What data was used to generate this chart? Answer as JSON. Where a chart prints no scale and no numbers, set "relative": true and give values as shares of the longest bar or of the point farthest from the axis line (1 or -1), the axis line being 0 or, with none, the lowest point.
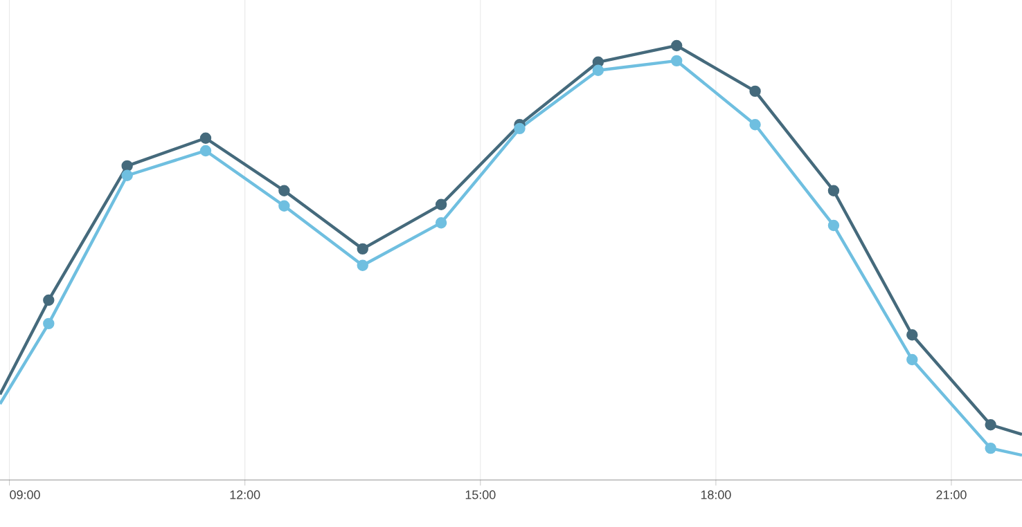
{
  "chart_data": {
    "type": "line",
    "relative": true,
    "x": [
      8.88,
      9.5,
      10.5,
      11.5,
      12.5,
      13.5,
      14.5,
      15.5,
      16.5,
      17.5,
      18.5,
      19.5,
      20.5,
      21.5,
      21.9
    ],
    "series": [
      {
        "color": "#456a7c",
        "values": [
          0.197,
          0.414,
          0.723,
          0.787,
          0.666,
          0.532,
          0.634,
          0.818,
          0.962,
          1,
          0.895,
          0.666,
          0.334,
          0.127,
          0.105
        ]
      },
      {
        "color": "#6fbfe0",
        "values": [
          0.175,
          0.36,
          0.701,
          0.758,
          0.631,
          0.494,
          0.592,
          0.809,
          0.943,
          0.965,
          0.818,
          0.586,
          0.277,
          0.073,
          0.057
        ]
      }
    ],
    "xlim": [
      8.88,
      21.9
    ],
    "xticks": [
      {
        "value": 9,
        "label": "09:00"
      },
      {
        "value": 12,
        "label": "12:00"
      },
      {
        "value": 15,
        "label": "15:00"
      },
      {
        "value": 18,
        "label": "18:00"
      },
      {
        "value": 21,
        "label": "21:00"
      }
    ],
    "grid": true,
    "marker": "circle",
    "line_style": "solid"
  }
}
